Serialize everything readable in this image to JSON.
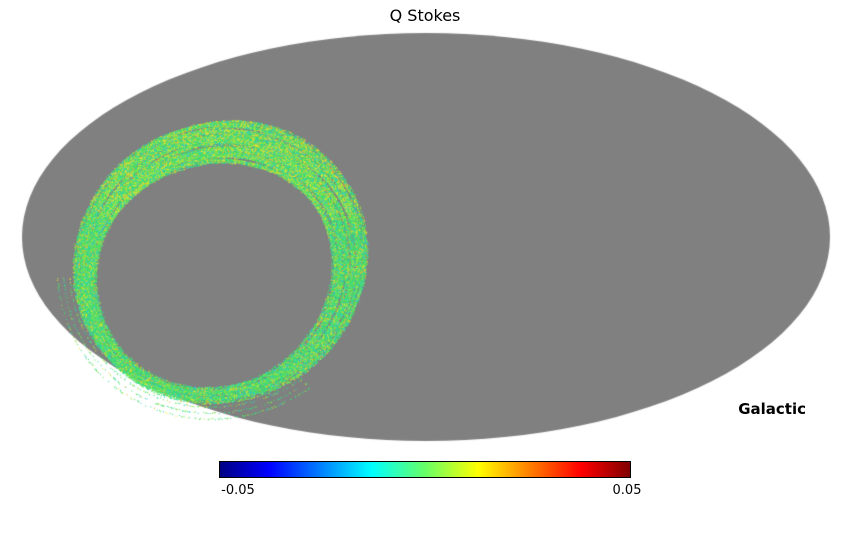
{
  "chart_data": {
    "type": "heatmap",
    "projection": "mollweide",
    "title": "Q Stokes",
    "coordinate_frame": "Galactic",
    "map_background_color": "#808080",
    "page_background_color": "#ffffff",
    "unobserved_region": "uniform gray (no data) covering most of the sky",
    "observed_region": "closed loop-shaped scan ring in the left half of the projection made of fine speckled pixels, thickest at its top and right sides, with faint detached thin arcs just outside its lower-left edge",
    "observed_values_note": "pixel values cluster near 0 of the color scale (greens/cyans) with scattered slightly positive yellow pixels",
    "colorbar": {
      "min": -0.05,
      "max": 0.05,
      "min_label": "-0.05",
      "max_label": "0.05",
      "colormap": "jet",
      "stops": [
        {
          "pos": 0.0,
          "color": "#000083"
        },
        {
          "pos": 0.12,
          "color": "#0000ff"
        },
        {
          "pos": 0.37,
          "color": "#00ffff"
        },
        {
          "pos": 0.5,
          "color": "#66ff66"
        },
        {
          "pos": 0.63,
          "color": "#ffff00"
        },
        {
          "pos": 0.88,
          "color": "#ff0000"
        },
        {
          "pos": 1.0,
          "color": "#800000"
        }
      ]
    },
    "scan_palette": [
      {
        "color": "#3ddc72",
        "w": 0.32
      },
      {
        "color": "#2fd9a4",
        "w": 0.18
      },
      {
        "color": "#55e455",
        "w": 0.16
      },
      {
        "color": "#9ee83c",
        "w": 0.12
      },
      {
        "color": "#e2e632",
        "w": 0.1
      },
      {
        "color": "#35c8d8",
        "w": 0.08
      },
      {
        "color": "#f2b02c",
        "w": 0.04
      }
    ],
    "scan_highlight_color": "#e2e632"
  }
}
